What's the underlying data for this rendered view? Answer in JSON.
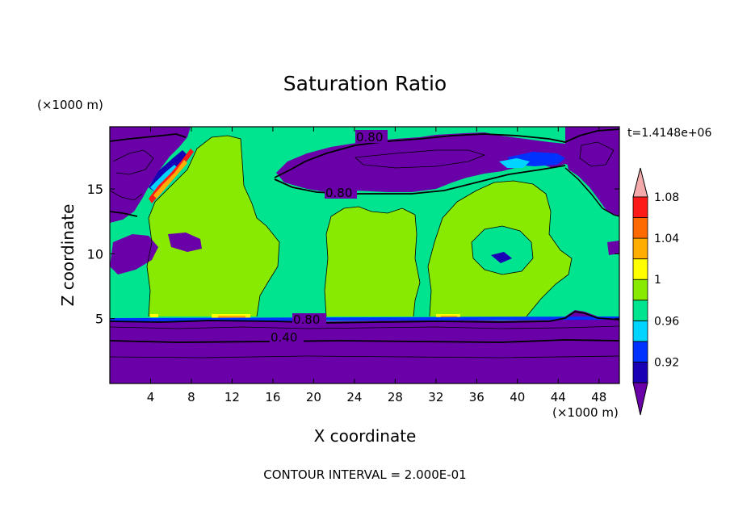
{
  "chart_data": {
    "type": "heatmap",
    "title": "Saturation Ratio",
    "xlabel": "X coordinate",
    "ylabel": "Z coordinate",
    "x_unit": "(×1000 m)",
    "y_unit": "(×1000 m)",
    "time_label": "t=1.4148e+06",
    "footer": "CONTOUR INTERVAL = 2.000E-01",
    "xlim": [
      0,
      50
    ],
    "ylim": [
      0,
      19.8
    ],
    "x_ticks": [
      4,
      8,
      12,
      16,
      20,
      24,
      28,
      32,
      36,
      40,
      44,
      48
    ],
    "y_ticks": [
      5,
      10,
      15
    ],
    "colorbar": {
      "levels": [
        0.92,
        0.96,
        1,
        1.04,
        1.08
      ],
      "level_labels": [
        "0.92",
        "0.96",
        "1",
        "1.04",
        "1.08"
      ],
      "colors": [
        "#6a00a8",
        "#1a00b4",
        "#0032ff",
        "#00d4ff",
        "#00e38f",
        "#87ea00",
        "#ffff00",
        "#ffad00",
        "#ff6a00",
        "#ff1a1a",
        "#f4aaaa"
      ],
      "extend": "both"
    },
    "contour_labels": [
      {
        "text": "0.80",
        "x": 25.3,
        "z": 19.0
      },
      {
        "text": "0.80",
        "x": 22.7,
        "z": 14.7
      },
      {
        "text": "0.80",
        "x": 19.5,
        "z": 4.9
      },
      {
        "text": "0.40",
        "x": 17.2,
        "z": 3.5
      }
    ],
    "regions": {
      "lower_layer": {
        "z_max": 5.0,
        "value_range": [
          0.4,
          0.8
        ],
        "color": "#6a00a8"
      },
      "upper_layer": {
        "z_min": 17.0,
        "color": "#6a00a8"
      },
      "midlevel_background": {
        "color": "#00e38f",
        "value": 0.98
      },
      "cloud_patches": [
        {
          "x": [
            3.5,
            14.5
          ],
          "z": [
            5,
            19
          ],
          "color": "#87ea00",
          "value": 1.01
        },
        {
          "x": [
            21,
            29
          ],
          "z": [
            5,
            13.5
          ],
          "color": "#87ea00",
          "value": 1.01
        },
        {
          "x": [
            31,
            45
          ],
          "z": [
            5,
            15.8
          ],
          "color": "#87ea00",
          "value": 1.01
        }
      ]
    }
  }
}
